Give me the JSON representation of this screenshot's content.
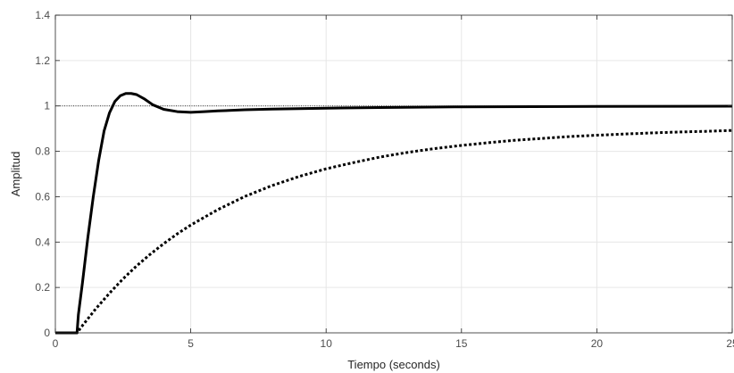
{
  "chart_data": {
    "type": "line",
    "title": "",
    "xlabel": "Tiempo (seconds)",
    "ylabel": "Amplitud",
    "xlim": [
      0,
      25
    ],
    "ylim": [
      0,
      1.4
    ],
    "xticks": [
      0,
      5,
      10,
      15,
      20,
      25
    ],
    "xtick_labels": [
      "0",
      "5",
      "10",
      "15",
      "20",
      "25"
    ],
    "yticks": [
      0,
      0.2,
      0.4,
      0.6,
      0.8,
      1,
      1.2,
      1.4
    ],
    "ytick_labels": [
      "0",
      "0.2",
      "0.4",
      "0.6",
      "0.8",
      "1",
      "1.2",
      "1.4"
    ],
    "grid": true,
    "reference_line": 1,
    "series": [
      {
        "style": "solid",
        "color": "#000000",
        "x": [
          0,
          0.8,
          0.85,
          1.0,
          1.2,
          1.4,
          1.6,
          1.8,
          2.0,
          2.2,
          2.4,
          2.6,
          2.8,
          3.0,
          3.3,
          3.6,
          4.0,
          4.5,
          5.0,
          5.5,
          6.0,
          7.0,
          8.0,
          10.0,
          12.0,
          15.0,
          20.0,
          25.0
        ],
        "y": [
          0,
          0,
          0.08,
          0.22,
          0.42,
          0.6,
          0.76,
          0.89,
          0.97,
          1.02,
          1.045,
          1.055,
          1.055,
          1.05,
          1.03,
          1.005,
          0.985,
          0.975,
          0.972,
          0.975,
          0.978,
          0.983,
          0.986,
          0.99,
          0.993,
          0.996,
          0.998,
          0.999
        ]
      },
      {
        "style": "dotted",
        "color": "#000000",
        "x": [
          0,
          0.8,
          0.9,
          1.0,
          1.5,
          2.0,
          2.5,
          3.0,
          3.5,
          4.0,
          4.5,
          5.0,
          6.0,
          7.0,
          8.0,
          9.0,
          10.0,
          11.0,
          12.0,
          13.0,
          14.0,
          15.0,
          16.0,
          17.0,
          18.0,
          19.0,
          20.0,
          21.0,
          22.0,
          23.0,
          24.0,
          25.0
        ],
        "y": [
          0,
          0,
          0.016,
          0.032,
          0.107,
          0.175,
          0.238,
          0.295,
          0.346,
          0.393,
          0.436,
          0.475,
          0.543,
          0.601,
          0.649,
          0.689,
          0.723,
          0.75,
          0.775,
          0.795,
          0.812,
          0.826,
          0.838,
          0.849,
          0.857,
          0.865,
          0.871,
          0.876,
          0.881,
          0.885,
          0.888,
          0.892
        ]
      }
    ]
  }
}
